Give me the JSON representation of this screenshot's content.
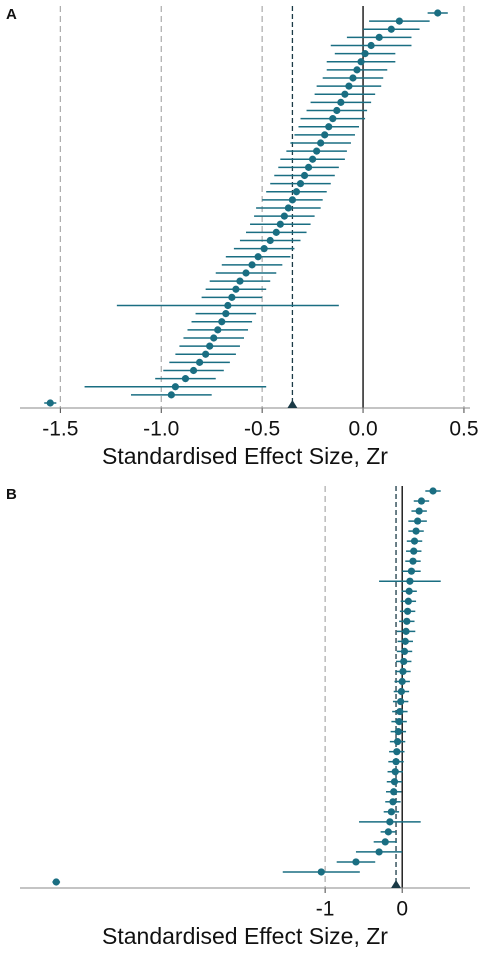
{
  "chart_data": [
    {
      "type": "forest",
      "panel_label": "A",
      "xlabel": "Standardised Effect Size, Zr",
      "color": "#1a6e82",
      "xlim": [
        -1.7,
        0.53
      ],
      "xticks": [
        -1.5,
        {
          "value": -1,
          "label": "-1.0"
        },
        -0.5,
        {
          "value": 0,
          "label": "0.0"
        },
        0.5
      ],
      "mean": -0.35,
      "values": [
        0.37,
        0.18,
        0.14,
        0.08,
        0.04,
        0.01,
        -0.01,
        -0.03,
        -0.05,
        -0.07,
        -0.09,
        -0.11,
        -0.13,
        -0.15,
        -0.17,
        -0.19,
        -0.21,
        -0.23,
        -0.25,
        -0.27,
        -0.29,
        -0.31,
        -0.33,
        -0.35,
        -0.37,
        -0.39,
        -0.41,
        -0.43,
        -0.46,
        -0.49,
        -0.52,
        -0.55,
        -0.58,
        -0.61,
        -0.63,
        -0.65,
        -0.67,
        -0.68,
        -0.7,
        -0.72,
        -0.74,
        -0.76,
        -0.78,
        -0.81,
        -0.84,
        -0.88,
        -0.93,
        -0.95,
        -1.55
      ],
      "errors": [
        0.05,
        0.15,
        0.14,
        0.16,
        0.2,
        0.15,
        0.17,
        0.15,
        0.15,
        0.16,
        0.15,
        0.15,
        0.15,
        0.16,
        0.15,
        0.15,
        0.15,
        0.15,
        0.16,
        0.15,
        0.15,
        0.15,
        0.15,
        0.15,
        0.16,
        0.15,
        0.15,
        0.15,
        0.15,
        0.15,
        0.16,
        0.15,
        0.15,
        0.15,
        0.15,
        0.15,
        0.55,
        0.15,
        0.15,
        0.15,
        0.15,
        0.15,
        0.15,
        0.15,
        0.15,
        0.15,
        0.45,
        0.2,
        0.03
      ]
    },
    {
      "type": "forest",
      "panel_label": "B",
      "xlabel": "Standardised Effect Size, Zr",
      "color": "#1a6e82",
      "xlim": [
        -4.96,
        0.88
      ],
      "xticks": [
        -1,
        0
      ],
      "mean": -0.08,
      "values": [
        0.4,
        0.25,
        0.22,
        0.2,
        0.18,
        0.16,
        0.15,
        0.14,
        0.12,
        0.1,
        0.09,
        0.08,
        0.07,
        0.06,
        0.05,
        0.04,
        0.03,
        0.02,
        0.01,
        0.0,
        -0.01,
        -0.02,
        -0.03,
        -0.04,
        -0.05,
        -0.06,
        -0.07,
        -0.08,
        -0.09,
        -0.1,
        -0.11,
        -0.12,
        -0.14,
        -0.16,
        -0.18,
        -0.22,
        -0.3,
        -0.6,
        -1.05,
        -4.49
      ],
      "errors": [
        0.1,
        0.1,
        0.1,
        0.12,
        0.1,
        0.1,
        0.1,
        0.1,
        0.12,
        0.4,
        0.1,
        0.1,
        0.1,
        0.1,
        0.12,
        0.1,
        0.1,
        0.1,
        0.1,
        0.1,
        0.1,
        0.1,
        0.1,
        0.1,
        0.1,
        0.1,
        0.1,
        0.1,
        0.1,
        0.1,
        0.1,
        0.1,
        0.1,
        0.4,
        0.1,
        0.15,
        0.3,
        0.25,
        0.5,
        0.05
      ]
    }
  ]
}
